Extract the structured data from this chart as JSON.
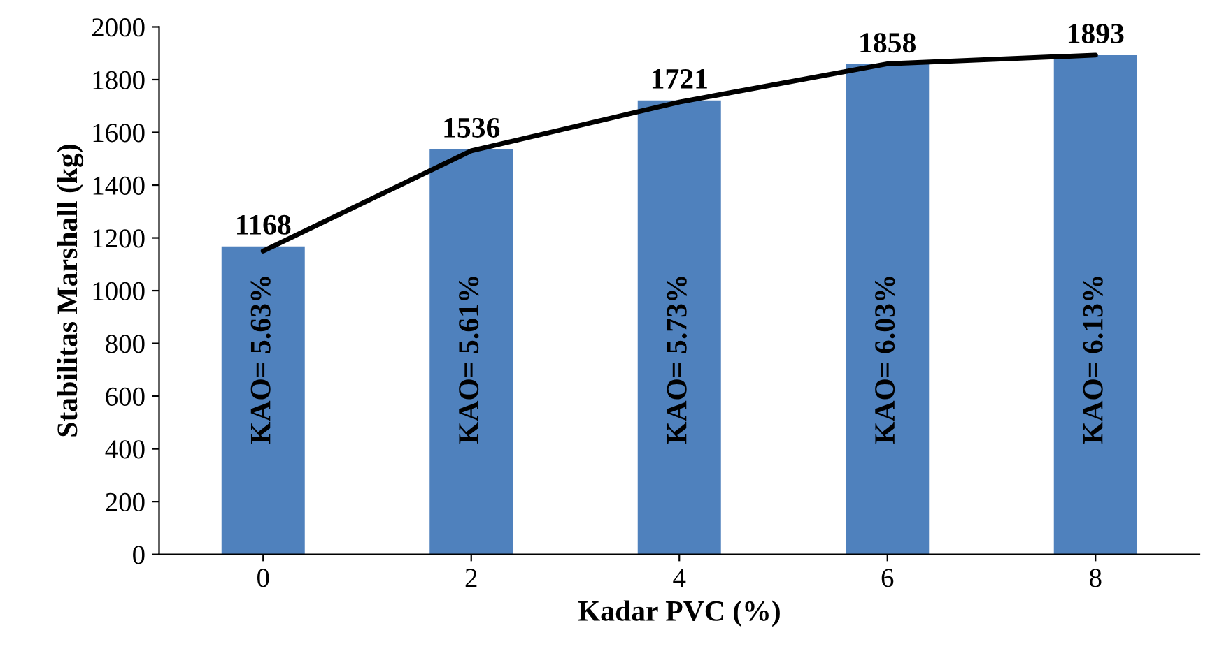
{
  "chart_data": {
    "type": "bar",
    "xlabel": "Kadar PVC (%)",
    "ylabel": "Stabilitas Marshall (kg)",
    "categories": [
      "0",
      "2",
      "4",
      "6",
      "8"
    ],
    "series": [
      {
        "color": "#4f81bd",
        "values": [
          1168,
          1536,
          1721,
          1858,
          1893
        ],
        "value_labels": [
          "1168",
          "1536",
          "1721",
          "1858",
          "1893"
        ]
      },
      {
        "type": "line",
        "color": "#000000",
        "values": [
          1150,
          1530,
          1715,
          1860,
          1893
        ]
      }
    ],
    "ylim": [
      0,
      2000
    ],
    "yticks": [
      0,
      200,
      400,
      600,
      800,
      1000,
      1200,
      1400,
      1600,
      1800,
      2000
    ],
    "annotations": [
      "KAO= 5.63%",
      "KAO= 5.61%",
      "KAO= 5.73%",
      "KAO= 6.03%",
      "KAO= 6.13%"
    ],
    "grid": false,
    "legend": false,
    "marker": "none",
    "line_style": "solid"
  }
}
